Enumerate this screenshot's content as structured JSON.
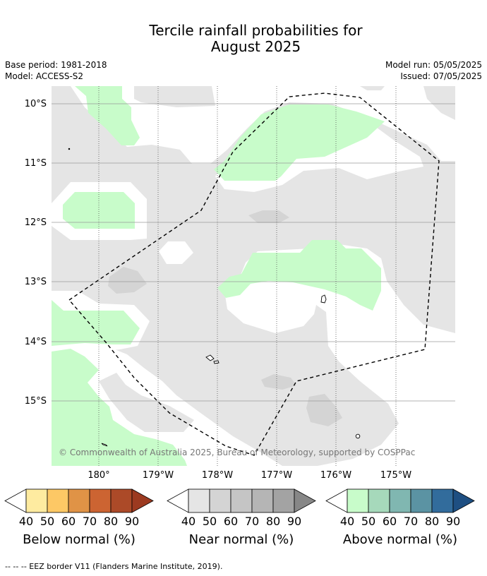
{
  "title": {
    "line1": "Tercile rainfall probabilities for",
    "line2": "August 2025"
  },
  "meta": {
    "base_period": "Base period: 1981-2018",
    "model": "Model: ACCESS-S2",
    "model_run": "Model run: 05/05/2025",
    "issued": "Issued: 07/05/2025"
  },
  "map": {
    "lon_ticks": [
      "180°",
      "179°W",
      "178°W",
      "177°W",
      "176°W",
      "175°W"
    ],
    "lat_ticks": [
      "10°S",
      "11°S",
      "12°S",
      "13°S",
      "14°S",
      "15°S"
    ],
    "copyright": "© Commonwealth of Australia 2025, Bureau of Meteorology, supported by COSPPac",
    "colors": {
      "near_normal_40": "#e5e5e5",
      "near_normal_50": "#d4d4d4",
      "above_normal_40": "#c8fcca",
      "eez_border": "#000000"
    }
  },
  "colorbars": [
    {
      "label": "Below normal (%)",
      "ticks": [
        "40",
        "50",
        "60",
        "70",
        "80",
        "90"
      ],
      "colors": [
        "#feeba0",
        "#fdc865",
        "#e09346",
        "#cc6432",
        "#ac4a28",
        "#9c3a20"
      ]
    },
    {
      "label": "Near normal (%)",
      "ticks": [
        "40",
        "50",
        "60",
        "70",
        "80",
        "90"
      ],
      "colors": [
        "#e5e5e5",
        "#d4d4d4",
        "#c5c5c5",
        "#b5b5b5",
        "#a3a3a3",
        "#878787"
      ]
    },
    {
      "label": "Above normal (%)",
      "ticks": [
        "40",
        "50",
        "60",
        "70",
        "80",
        "90"
      ],
      "colors": [
        "#c8fcca",
        "#a6d9bb",
        "#80b7b1",
        "#5b93a3",
        "#326c9c",
        "#1e4f82"
      ]
    }
  ],
  "footnote": "--  --  -- EEZ border V11 (Flanders Marine Institute, 2019)."
}
